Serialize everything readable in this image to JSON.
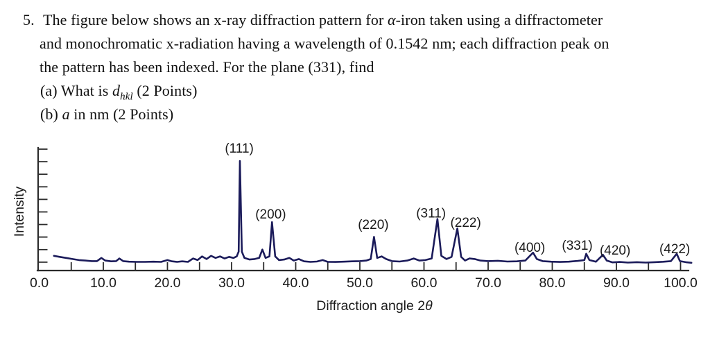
{
  "question": {
    "number": "5.",
    "line1_pre": "The figure below shows an x-ray diffraction pattern for ",
    "line1_alpha": "α",
    "line1_post": "-iron taken using a diffractometer",
    "line2": "and monochromatic x-radiation having a wavelength of 0.1542 nm; each diffraction peak on",
    "line3": "the pattern has been indexed. For the plane (331), find",
    "item_a_pre": "(a) What is ",
    "item_a_d": "d",
    "item_a_sub": "hkl",
    "item_a_post": " (2 Points)",
    "item_b_pre": "(b) ",
    "item_b_a": "a",
    "item_b_post": " in nm (2 Points)"
  },
  "chart_data": {
    "type": "line",
    "title": "",
    "xlabel_pre": "Diffraction angle 2",
    "xlabel_theta": "θ",
    "ylabel": "Intensity",
    "xlim": [
      0,
      102
    ],
    "ylim": [
      0,
      110
    ],
    "grid": false,
    "legend": "none",
    "line_color": "#1b1b5a",
    "axis_color": "#2b2b2b",
    "y_tick_count": 10,
    "x_major_tick_values": [
      0,
      10,
      20,
      30,
      40,
      50,
      60,
      70,
      80,
      90,
      100
    ],
    "x_major_tick_labels": [
      "0.0",
      "10.0",
      "20.0",
      "30.0",
      "40.0",
      "50.0",
      "60.0",
      "70.0",
      "80.0",
      "90.0",
      "100.0"
    ],
    "x_minor_tick_values": [
      5,
      10,
      15,
      20,
      25,
      30,
      35,
      40,
      45,
      50,
      55,
      60,
      65,
      70,
      75,
      80,
      85,
      90,
      95,
      100
    ],
    "peaks": [
      {
        "label": "(111)",
        "two_theta": 31.3,
        "intensity": 100,
        "label_x": 31.2,
        "label_y": 108
      },
      {
        "label": "(200)",
        "two_theta": 36.3,
        "intensity": 42,
        "label_x": 36.1,
        "label_y": 45.5
      },
      {
        "label": "(220)",
        "two_theta": 52.2,
        "intensity": 28,
        "label_x": 52.1,
        "label_y": 35.5
      },
      {
        "label": "(311)",
        "two_theta": 62.1,
        "intensity": 45,
        "label_x": 61.1,
        "label_y": 46.5
      },
      {
        "label": "(222)",
        "two_theta": 65.2,
        "intensity": 36,
        "label_x": 66.5,
        "label_y": 37.5
      },
      {
        "label": "(400)",
        "two_theta": 77.0,
        "intensity": 13,
        "label_x": 76.5,
        "label_y": 13.8
      },
      {
        "label": "(331)",
        "two_theta": 85.3,
        "intensity": 12,
        "label_x": 83.9,
        "label_y": 15.8
      },
      {
        "label": "(420)",
        "two_theta": 87.9,
        "intensity": 11,
        "label_x": 89.8,
        "label_y": 11.2
      },
      {
        "label": "(422)",
        "two_theta": 99.4,
        "intensity": 12,
        "label_x": 99.1,
        "label_y": 12.5
      }
    ],
    "curve": [
      [
        2.3,
        10
      ],
      [
        3.2,
        9
      ],
      [
        4.2,
        8
      ],
      [
        5.2,
        7
      ],
      [
        6.2,
        6
      ],
      [
        7.2,
        5.5
      ],
      [
        8.2,
        5
      ],
      [
        9.0,
        5
      ],
      [
        9.7,
        8
      ],
      [
        10.3,
        5.5
      ],
      [
        11.2,
        4.8
      ],
      [
        12.0,
        5
      ],
      [
        12.5,
        7.5
      ],
      [
        13.1,
        5
      ],
      [
        14.0,
        4.5
      ],
      [
        15.2,
        4.3
      ],
      [
        16.5,
        4.3
      ],
      [
        17.8,
        4.5
      ],
      [
        19.0,
        4.3
      ],
      [
        20.0,
        6
      ],
      [
        20.7,
        4.8
      ],
      [
        21.5,
        4.3
      ],
      [
        22.3,
        4.8
      ],
      [
        23.2,
        4.3
      ],
      [
        24.0,
        7.5
      ],
      [
        24.7,
        6
      ],
      [
        25.4,
        9.5
      ],
      [
        26.1,
        7
      ],
      [
        26.8,
        10
      ],
      [
        27.5,
        8
      ],
      [
        28.2,
        9.5
      ],
      [
        28.9,
        7.5
      ],
      [
        29.6,
        9
      ],
      [
        30.3,
        8
      ],
      [
        30.8,
        9.5
      ],
      [
        31.1,
        14
      ],
      [
        31.3,
        100
      ],
      [
        31.6,
        14
      ],
      [
        32.0,
        8
      ],
      [
        32.8,
        6.5
      ],
      [
        33.6,
        7
      ],
      [
        34.3,
        8
      ],
      [
        34.8,
        16
      ],
      [
        35.3,
        8
      ],
      [
        35.9,
        9.5
      ],
      [
        36.3,
        42
      ],
      [
        36.8,
        9.5
      ],
      [
        37.4,
        6
      ],
      [
        38.2,
        6.5
      ],
      [
        39.0,
        8
      ],
      [
        39.7,
        5.5
      ],
      [
        40.5,
        7
      ],
      [
        41.3,
        4.8
      ],
      [
        42.3,
        4.3
      ],
      [
        43.3,
        4.6
      ],
      [
        44.2,
        6
      ],
      [
        45.0,
        4.3
      ],
      [
        46.2,
        4.2
      ],
      [
        47.5,
        4.5
      ],
      [
        48.8,
        4.8
      ],
      [
        50.0,
        5
      ],
      [
        51.0,
        5.5
      ],
      [
        51.7,
        7
      ],
      [
        52.2,
        28
      ],
      [
        52.7,
        8
      ],
      [
        53.4,
        9.5
      ],
      [
        54.1,
        7
      ],
      [
        55.0,
        5
      ],
      [
        56.2,
        4.6
      ],
      [
        57.4,
        5.5
      ],
      [
        58.4,
        7.5
      ],
      [
        59.3,
        5.5
      ],
      [
        60.2,
        6
      ],
      [
        61.2,
        7.5
      ],
      [
        62.1,
        45
      ],
      [
        62.7,
        10
      ],
      [
        63.5,
        7
      ],
      [
        64.3,
        9
      ],
      [
        65.2,
        36
      ],
      [
        65.8,
        9
      ],
      [
        66.4,
        5.5
      ],
      [
        67.1,
        7.5
      ],
      [
        67.9,
        7
      ],
      [
        68.8,
        5.5
      ],
      [
        70.0,
        5
      ],
      [
        71.5,
        5.3
      ],
      [
        73.0,
        4.6
      ],
      [
        74.5,
        4.8
      ],
      [
        75.8,
        5.5
      ],
      [
        77.0,
        13
      ],
      [
        77.6,
        7
      ],
      [
        78.5,
        5
      ],
      [
        79.8,
        4.5
      ],
      [
        81.2,
        4.2
      ],
      [
        82.6,
        4.5
      ],
      [
        84.0,
        5.2
      ],
      [
        85.0,
        6
      ],
      [
        85.3,
        12
      ],
      [
        85.8,
        6
      ],
      [
        86.8,
        4.4
      ],
      [
        87.9,
        11
      ],
      [
        88.5,
        5.5
      ],
      [
        89.4,
        3.8
      ],
      [
        90.5,
        4.2
      ],
      [
        91.8,
        3.6
      ],
      [
        93.2,
        4
      ],
      [
        94.6,
        3.6
      ],
      [
        96.0,
        4
      ],
      [
        97.3,
        4.4
      ],
      [
        98.5,
        5
      ],
      [
        99.4,
        12
      ],
      [
        99.9,
        5
      ],
      [
        100.8,
        4
      ],
      [
        101.7,
        3.4
      ]
    ]
  }
}
